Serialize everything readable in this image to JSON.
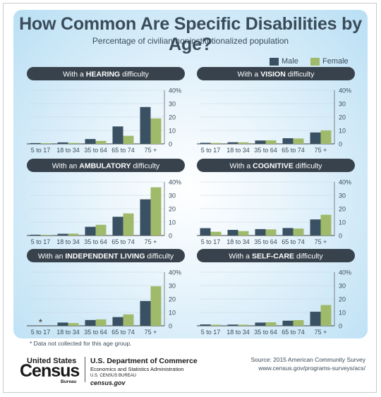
{
  "title": "How Common Are Specific Disabilities by Age?",
  "subtitle": "Percentage of civilian noninstitutionalized population",
  "legend": {
    "male": "Male",
    "female": "Female"
  },
  "colors": {
    "male": "#3a5163",
    "female": "#9fba6b",
    "panel_title_bg": "#38424c",
    "text": "#3a4c5a"
  },
  "footnote": "* Data not collected for this age group.",
  "source_line1": "Source: 2015 American Community Survey",
  "source_line2": "www.census.gov/programs-surveys/acs/",
  "footer": {
    "logo_united": "United States",
    "logo_census": "Census",
    "logo_bureau": "Bureau",
    "dept_line1": "U.S. Department of Commerce",
    "dept_line2": "Economics and Statistics Administration",
    "dept_line3": "U.S. CENSUS BUREAU",
    "dept_line4": "census.gov"
  },
  "chart_data": [
    {
      "type": "bar",
      "title_pre": "With a ",
      "title_bold": "HEARING",
      "title_post": " difficulty",
      "categories": [
        "5 to 17",
        "18 to 34",
        "35 to 64",
        "65 to 74",
        "75 +"
      ],
      "series": [
        {
          "name": "Male",
          "values": [
            0.6,
            1.1,
            3.6,
            13.0,
            27.5
          ]
        },
        {
          "name": "Female",
          "values": [
            0.5,
            0.7,
            2.2,
            6.0,
            19.0
          ]
        }
      ],
      "yticks": [
        "40%",
        "30",
        "20",
        "10",
        "0"
      ],
      "ylim": [
        0,
        40
      ]
    },
    {
      "type": "bar",
      "title_pre": "With a ",
      "title_bold": "VISION",
      "title_post": " difficulty",
      "categories": [
        "5 to 17",
        "18 to 34",
        "35 to 64",
        "65 to 74",
        "75 +"
      ],
      "series": [
        {
          "name": "Male",
          "values": [
            0.8,
            1.2,
            2.5,
            4.2,
            8.5
          ]
        },
        {
          "name": "Female",
          "values": [
            0.7,
            1.1,
            2.6,
            4.0,
            10.0
          ]
        }
      ],
      "yticks": [
        "40%",
        "30",
        "20",
        "10",
        "0"
      ],
      "ylim": [
        0,
        40
      ]
    },
    {
      "type": "bar",
      "title_pre": "With an ",
      "title_bold": "AMBULATORY",
      "title_post": " difficulty",
      "categories": [
        "5 to 17",
        "18 to 34",
        "35 to 64",
        "65 to 74",
        "75 +"
      ],
      "series": [
        {
          "name": "Male",
          "values": [
            0.6,
            1.3,
            6.5,
            14.0,
            27.0
          ]
        },
        {
          "name": "Female",
          "values": [
            0.5,
            1.4,
            8.0,
            16.5,
            36.0
          ]
        }
      ],
      "yticks": [
        "40%",
        "30",
        "20",
        "10",
        "0"
      ],
      "ylim": [
        0,
        40
      ]
    },
    {
      "type": "bar",
      "title_pre": "With a ",
      "title_bold": "COGNITIVE",
      "title_post": " difficulty",
      "categories": [
        "5 to 17",
        "18 to 34",
        "35 to 64",
        "65 to 74",
        "75 +"
      ],
      "series": [
        {
          "name": "Male",
          "values": [
            5.5,
            4.2,
            4.8,
            5.6,
            12.0
          ]
        },
        {
          "name": "Female",
          "values": [
            2.8,
            3.3,
            4.6,
            5.2,
            15.5
          ]
        }
      ],
      "yticks": [
        "40%",
        "30",
        "20",
        "10",
        "0"
      ],
      "ylim": [
        0,
        40
      ]
    },
    {
      "type": "bar",
      "title_pre": "With an ",
      "title_bold": "INDEPENDENT LIVING",
      "title_post": " difficulty",
      "categories": [
        "5 to 17",
        "18 to 34",
        "35 to 64",
        "65 to 74",
        "75 +"
      ],
      "series": [
        {
          "name": "Male",
          "values": [
            null,
            2.4,
            4.3,
            6.5,
            18.5
          ]
        },
        {
          "name": "Female",
          "values": [
            null,
            2.0,
            4.8,
            8.5,
            29.5
          ]
        }
      ],
      "missing_marker": "*",
      "yticks": [
        "40%",
        "30",
        "20",
        "10",
        "0"
      ],
      "ylim": [
        0,
        40
      ]
    },
    {
      "type": "bar",
      "title_pre": "With a ",
      "title_bold": "SELF-CARE",
      "title_post": " difficulty",
      "categories": [
        "5 to 17",
        "18 to 34",
        "35 to 64",
        "65 to 74",
        "75 +"
      ],
      "series": [
        {
          "name": "Male",
          "values": [
            1.0,
            0.9,
            2.4,
            3.8,
            10.5
          ]
        },
        {
          "name": "Female",
          "values": [
            0.8,
            0.8,
            2.6,
            4.2,
            15.5
          ]
        }
      ],
      "yticks": [
        "40%",
        "30",
        "20",
        "10",
        "0"
      ],
      "ylim": [
        0,
        40
      ]
    }
  ]
}
